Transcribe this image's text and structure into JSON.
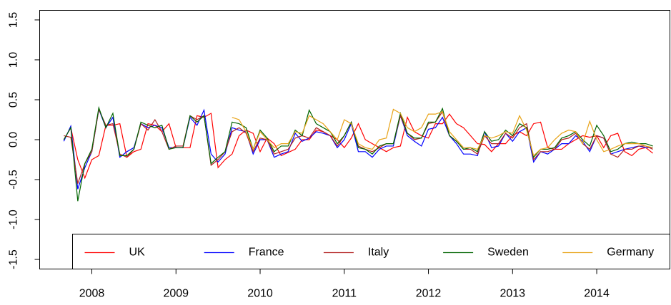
{
  "chart_data": {
    "type": "line",
    "x": [
      2007.667,
      2007.75,
      2007.833,
      2007.917,
      2008,
      2008.083,
      2008.167,
      2008.25,
      2008.333,
      2008.417,
      2008.5,
      2008.583,
      2008.667,
      2008.75,
      2008.833,
      2008.917,
      2009,
      2009.083,
      2009.167,
      2009.25,
      2009.333,
      2009.417,
      2009.5,
      2009.583,
      2009.667,
      2009.75,
      2009.833,
      2009.917,
      2010,
      2010.083,
      2010.167,
      2010.25,
      2010.333,
      2010.417,
      2010.5,
      2010.583,
      2010.667,
      2010.75,
      2010.833,
      2010.917,
      2011,
      2011.083,
      2011.167,
      2011.25,
      2011.333,
      2011.417,
      2011.5,
      2011.583,
      2011.667,
      2011.75,
      2011.833,
      2011.917,
      2012,
      2012.083,
      2012.167,
      2012.25,
      2012.333,
      2012.417,
      2012.5,
      2012.583,
      2012.667,
      2012.75,
      2012.833,
      2012.917,
      2013,
      2013.083,
      2013.167,
      2013.25,
      2013.333,
      2013.417,
      2013.5,
      2013.583,
      2013.667,
      2013.75,
      2013.833,
      2013.917,
      2014,
      2014.083,
      2014.167,
      2014.25,
      2014.333,
      2014.417,
      2014.5,
      2014.583,
      2014.667
    ],
    "series": [
      {
        "name": "UK",
        "color": "#ff0000",
        "values": [
          0.0,
          0.15,
          -0.25,
          -0.48,
          -0.25,
          -0.2,
          0.18,
          0.18,
          0.2,
          -0.22,
          -0.15,
          -0.12,
          0.2,
          0.18,
          0.1,
          0.2,
          -0.1,
          -0.1,
          -0.1,
          0.3,
          0.28,
          0.33,
          -0.35,
          -0.25,
          -0.18,
          0.05,
          0.12,
          0.08,
          -0.15,
          0.02,
          -0.05,
          -0.2,
          -0.16,
          -0.12,
          0.0,
          0.0,
          0.12,
          0.1,
          0.05,
          0.0,
          -0.1,
          0.02,
          0.2,
          0.0,
          -0.05,
          -0.1,
          -0.15,
          -0.1,
          -0.08,
          0.28,
          0.1,
          0.05,
          0.02,
          0.2,
          0.2,
          0.32,
          0.2,
          0.15,
          0.05,
          -0.05,
          -0.06,
          -0.15,
          -0.05,
          -0.05,
          0.05,
          0.1,
          0.05,
          0.2,
          0.22,
          -0.1,
          -0.12,
          -0.12,
          -0.05,
          0.0,
          0.05,
          0.03,
          0.05,
          -0.1,
          0.05,
          0.08,
          -0.15,
          -0.2,
          -0.12,
          -0.1,
          -0.17
        ]
      },
      {
        "name": "France",
        "color": "#0000ff",
        "values": [
          -0.02,
          0.17,
          -0.62,
          -0.35,
          -0.15,
          0.38,
          0.15,
          0.28,
          -0.22,
          -0.15,
          -0.1,
          0.2,
          0.15,
          0.18,
          0.15,
          -0.1,
          -0.1,
          -0.1,
          0.28,
          0.18,
          0.37,
          -0.18,
          -0.28,
          -0.18,
          0.15,
          0.12,
          0.1,
          -0.18,
          0.0,
          0.0,
          -0.22,
          -0.18,
          -0.15,
          0.08,
          -0.02,
          0.02,
          0.1,
          0.08,
          0.05,
          -0.1,
          0.0,
          0.2,
          -0.15,
          -0.15,
          -0.22,
          -0.12,
          -0.08,
          -0.08,
          0.3,
          0.05,
          -0.02,
          -0.08,
          0.13,
          0.15,
          0.28,
          0.05,
          -0.05,
          -0.18,
          -0.18,
          -0.2,
          0.1,
          -0.1,
          -0.08,
          0.08,
          -0.02,
          0.1,
          0.15,
          -0.28,
          -0.15,
          -0.18,
          -0.12,
          -0.05,
          -0.05,
          0.05,
          -0.02,
          -0.15,
          0.05,
          0.02,
          -0.18,
          -0.15,
          -0.12,
          -0.1,
          -0.08,
          -0.1,
          -0.1
        ]
      },
      {
        "name": "Italy",
        "color": "#b22222",
        "values": [
          0.05,
          0.03,
          -0.55,
          -0.3,
          -0.15,
          0.38,
          0.18,
          0.2,
          -0.18,
          -0.22,
          -0.12,
          0.2,
          0.12,
          0.25,
          0.1,
          -0.12,
          -0.08,
          -0.08,
          0.3,
          0.25,
          0.3,
          -0.32,
          -0.25,
          -0.15,
          0.1,
          0.15,
          0.08,
          -0.15,
          0.02,
          0.0,
          -0.18,
          -0.15,
          -0.12,
          0.02,
          0.05,
          0.02,
          0.15,
          0.1,
          0.05,
          -0.08,
          0.05,
          0.22,
          -0.08,
          -0.12,
          -0.15,
          -0.1,
          -0.05,
          -0.05,
          0.3,
          0.08,
          0.0,
          0.02,
          0.2,
          0.22,
          0.35,
          0.05,
          -0.02,
          -0.12,
          -0.12,
          -0.18,
          0.05,
          -0.05,
          -0.05,
          0.08,
          0.02,
          0.15,
          0.2,
          -0.25,
          -0.15,
          -0.15,
          -0.12,
          0.0,
          0.02,
          0.08,
          -0.05,
          -0.12,
          0.05,
          0.02,
          -0.18,
          -0.22,
          -0.12,
          -0.12,
          -0.08,
          -0.08,
          -0.12
        ]
      },
      {
        "name": "Sweden",
        "color": "#006400",
        "values": [
          0.0,
          0.15,
          -0.77,
          -0.3,
          -0.12,
          0.4,
          0.15,
          0.33,
          -0.2,
          -0.2,
          -0.12,
          0.22,
          0.18,
          0.15,
          0.18,
          -0.12,
          -0.1,
          -0.1,
          0.3,
          0.22,
          0.3,
          -0.3,
          -0.22,
          -0.15,
          0.22,
          0.2,
          0.15,
          -0.12,
          0.12,
          0.02,
          -0.15,
          -0.08,
          -0.08,
          0.12,
          0.05,
          0.37,
          0.2,
          0.15,
          0.1,
          -0.05,
          0.05,
          0.22,
          -0.1,
          -0.12,
          -0.18,
          -0.08,
          -0.05,
          -0.05,
          0.33,
          0.08,
          0.02,
          0.02,
          0.22,
          0.22,
          0.39,
          0.05,
          -0.02,
          -0.12,
          -0.1,
          -0.15,
          0.1,
          -0.02,
          0.0,
          0.12,
          0.05,
          0.2,
          0.15,
          -0.22,
          -0.12,
          -0.12,
          -0.1,
          0.02,
          0.05,
          0.1,
          0.0,
          -0.08,
          0.18,
          0.05,
          -0.15,
          -0.12,
          -0.05,
          -0.03,
          -0.05,
          -0.05,
          -0.08
        ]
      },
      {
        "name": "Germany",
        "color": "#e8a317",
        "values": [
          null,
          null,
          null,
          null,
          null,
          null,
          null,
          null,
          null,
          null,
          null,
          null,
          null,
          null,
          null,
          null,
          null,
          null,
          null,
          null,
          null,
          null,
          null,
          null,
          0.28,
          0.25,
          0.1,
          -0.12,
          0.1,
          0.0,
          -0.1,
          -0.05,
          -0.05,
          0.1,
          0.08,
          0.3,
          0.25,
          0.2,
          0.1,
          0.0,
          0.25,
          0.2,
          -0.05,
          -0.1,
          -0.12,
          0.0,
          0.02,
          0.38,
          0.33,
          0.15,
          0.1,
          0.15,
          0.32,
          0.32,
          0.35,
          0.1,
          0.0,
          -0.1,
          -0.1,
          -0.12,
          0.05,
          0.02,
          0.05,
          0.1,
          0.08,
          0.3,
          0.12,
          -0.2,
          -0.12,
          -0.1,
          0.0,
          0.08,
          0.12,
          0.1,
          -0.05,
          0.23,
          0.0,
          -0.15,
          -0.12,
          -0.08,
          -0.05,
          -0.05,
          -0.05,
          -0.08,
          -0.1
        ]
      }
    ],
    "xlim": [
      2007.38,
      2014.87
    ],
    "ylim": [
      -1.62,
      1.62
    ],
    "xticks": [
      2008,
      2009,
      2010,
      2011,
      2012,
      2013,
      2014
    ],
    "yticks": [
      -1.5,
      {
        "value": -1,
        "label": "-1.0"
      },
      -0.5,
      {
        "value": 0,
        "label": "0.0"
      },
      0.5,
      {
        "value": 1,
        "label": "1.0"
      },
      1.5
    ],
    "legend": "bottom"
  }
}
